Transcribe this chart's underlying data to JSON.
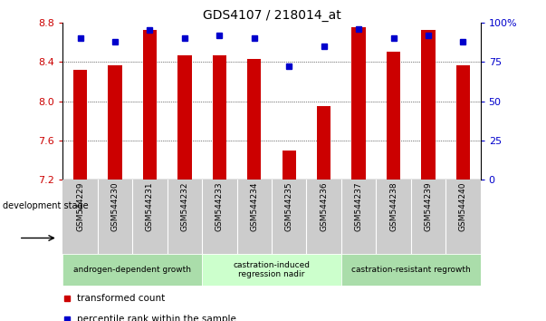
{
  "title": "GDS4107 / 218014_at",
  "samples": [
    "GSM544229",
    "GSM544230",
    "GSM544231",
    "GSM544232",
    "GSM544233",
    "GSM544234",
    "GSM544235",
    "GSM544236",
    "GSM544237",
    "GSM544238",
    "GSM544239",
    "GSM544240"
  ],
  "transformed_counts": [
    8.32,
    8.36,
    8.72,
    8.47,
    8.47,
    8.43,
    7.5,
    7.95,
    8.75,
    8.5,
    8.72,
    8.36
  ],
  "percentile_ranks": [
    90,
    88,
    95,
    90,
    92,
    90,
    72,
    85,
    96,
    90,
    92,
    88
  ],
  "y_min": 7.2,
  "y_max": 8.8,
  "y_ticks": [
    7.2,
    7.6,
    8.0,
    8.4,
    8.8
  ],
  "right_y_ticks": [
    0,
    25,
    50,
    75,
    100
  ],
  "right_y_labels": [
    "0",
    "25",
    "50",
    "75",
    "100%"
  ],
  "bar_color": "#cc0000",
  "dot_color": "#0000cc",
  "groups": [
    {
      "label": "androgen-dependent growth",
      "start": 0,
      "end": 3,
      "color": "#aaddaa"
    },
    {
      "label": "castration-induced\nregression nadir",
      "start": 4,
      "end": 7,
      "color": "#ccffcc"
    },
    {
      "label": "castration-resistant regrowth",
      "start": 8,
      "end": 11,
      "color": "#aaddaa"
    }
  ],
  "dev_stage_label": "development stage",
  "legend_items": [
    {
      "label": "transformed count",
      "color": "#cc0000"
    },
    {
      "label": "percentile rank within the sample",
      "color": "#0000cc"
    }
  ],
  "tick_label_color_left": "#cc0000",
  "tick_label_color_right": "#0000cc",
  "sample_label_bg": "#cccccc",
  "bar_width": 0.4
}
